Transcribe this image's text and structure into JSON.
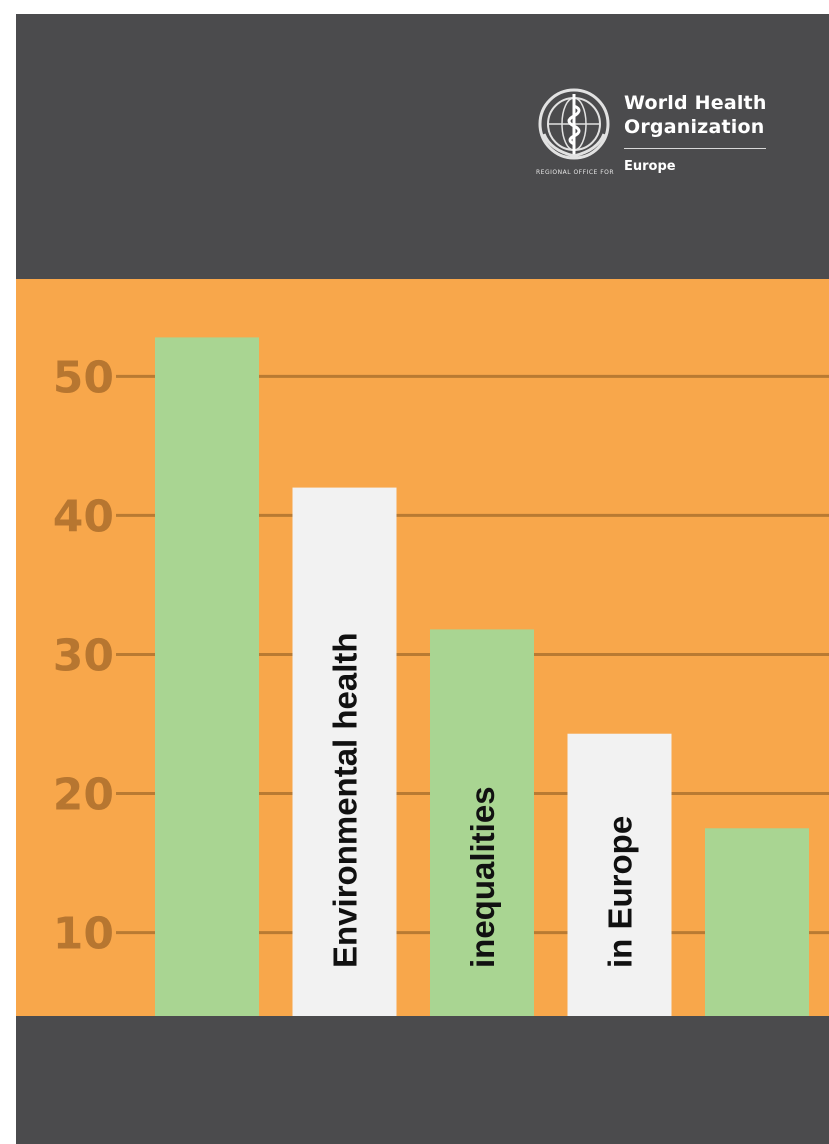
{
  "organization": {
    "name_line1": "World Health",
    "name_line2": "Organization",
    "region": "Europe",
    "regional_office_text": "REGIONAL OFFICE FOR"
  },
  "colors": {
    "dark_band": "#4b4b4d",
    "orange": "#f8a74b",
    "green_bar": "#a9d592",
    "white_bar": "#f2f2f2",
    "gridline": "#b97a32",
    "tick_text": "#b77630"
  },
  "chart_data": {
    "type": "bar",
    "title": "",
    "xlabel": "",
    "ylabel": "",
    "ylim": [
      4,
      57
    ],
    "yticks": [
      10,
      20,
      30,
      40,
      50
    ],
    "grid": true,
    "values": [
      52.8,
      42.0,
      31.8,
      24.3,
      17.5
    ],
    "bar_colors": [
      "green",
      "white",
      "green",
      "white",
      "green"
    ],
    "bar_labels": [
      "",
      "Environmental health",
      "inequalities",
      "in Europe",
      ""
    ]
  }
}
